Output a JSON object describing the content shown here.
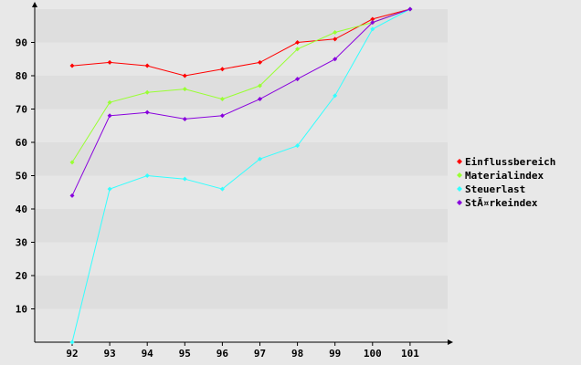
{
  "chart_data": {
    "type": "line",
    "title": "",
    "xlabel": "",
    "ylabel": "",
    "x": [
      "92",
      "93",
      "94",
      "95",
      "96",
      "97",
      "98",
      "99",
      "100",
      "101"
    ],
    "ylim": [
      0,
      100
    ],
    "yticks": [
      10,
      20,
      30,
      40,
      50,
      60,
      70,
      80,
      90
    ],
    "grid": "horizontal bands",
    "legend": "right",
    "series": [
      {
        "name": "Einflussbereich",
        "color": "#ff0000",
        "values": [
          83,
          84,
          83,
          80,
          82,
          84,
          90,
          91,
          97,
          100
        ]
      },
      {
        "name": "Materialindex",
        "color": "#99ff33",
        "values": [
          54,
          72,
          75,
          76,
          73,
          77,
          88,
          93,
          96,
          100
        ]
      },
      {
        "name": "Steuerlast",
        "color": "#33ffff",
        "values": [
          0,
          46,
          50,
          49,
          46,
          55,
          59,
          74,
          94,
          100
        ]
      },
      {
        "name": "StÃ¤rkeindex",
        "color": "#8800dd",
        "values": [
          44,
          68,
          69,
          67,
          68,
          73,
          79,
          85,
          96,
          100
        ]
      }
    ]
  }
}
